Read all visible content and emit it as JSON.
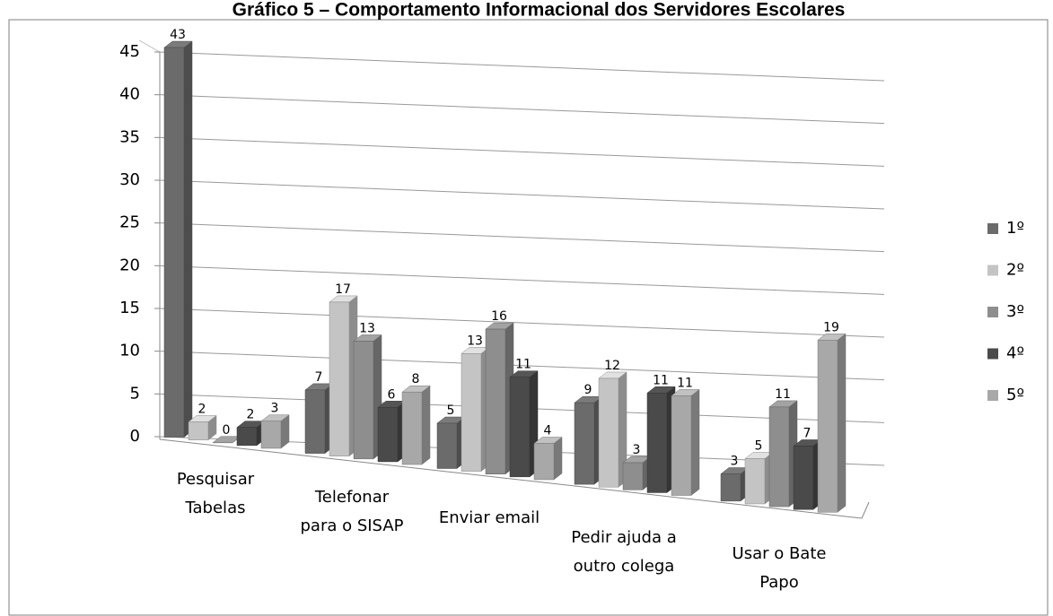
{
  "chart_data": {
    "type": "bar3d",
    "title": "Gráfico 5 – Comportamento Informacional dos Servidores Escolares",
    "categories": [
      [
        "Pesquisar",
        "Tabelas"
      ],
      [
        "Telefonar",
        "para o SISAP"
      ],
      [
        "Enviar email"
      ],
      [
        "Pedir ajuda a",
        "outro colega"
      ],
      [
        "Usar o Bate",
        "Papo"
      ]
    ],
    "series": [
      {
        "name": "1º",
        "color": "#6b6b6b",
        "values": [
          43,
          7,
          5,
          9,
          3
        ]
      },
      {
        "name": "2º",
        "color": "#c4c4c4",
        "values": [
          2,
          17,
          13,
          12,
          5
        ]
      },
      {
        "name": "3º",
        "color": "#8e8e8e",
        "values": [
          0,
          13,
          16,
          3,
          11
        ]
      },
      {
        "name": "4º",
        "color": "#4a4a4a",
        "values": [
          2,
          6,
          11,
          11,
          7
        ]
      },
      {
        "name": "5º",
        "color": "#a8a8a8",
        "values": [
          3,
          8,
          4,
          11,
          19
        ]
      }
    ],
    "ylim": [
      0,
      45
    ],
    "yticks": [
      0,
      5,
      10,
      15,
      20,
      25,
      30,
      35,
      40,
      45
    ],
    "grid": true,
    "legend": "right"
  }
}
